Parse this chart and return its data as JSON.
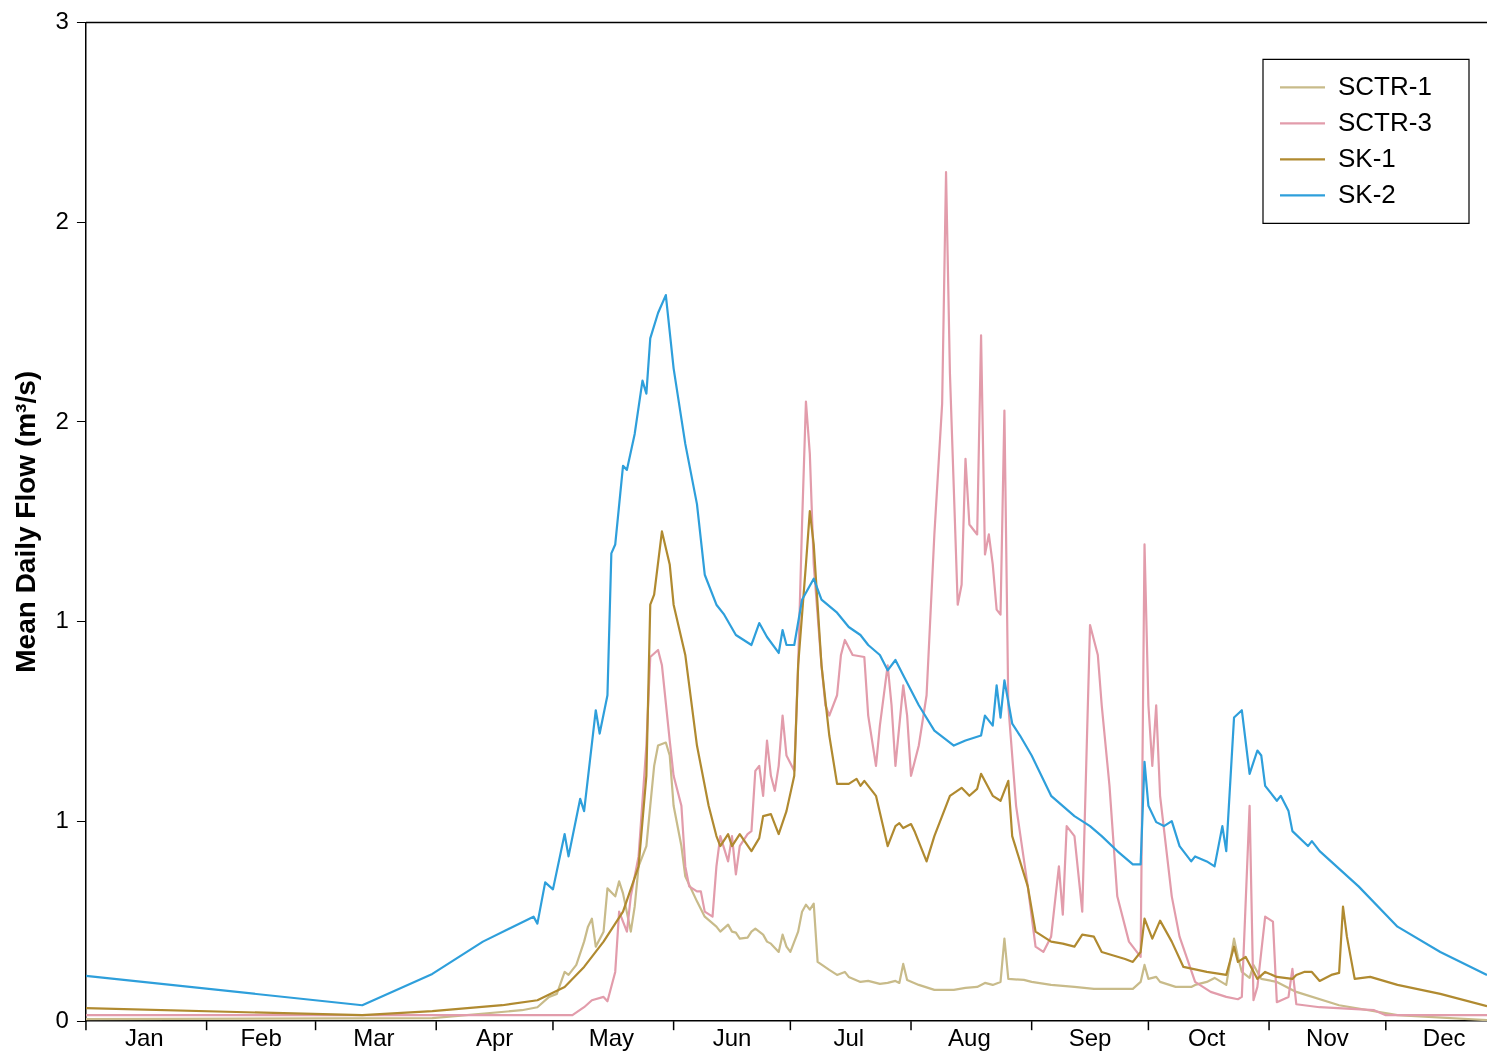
{
  "chart_data": {
    "type": "line",
    "ylabel": "Mean Daily Flow (m³/s)",
    "xlim": [
      "--01-01",
      "--12-27"
    ],
    "ylim": [
      0,
      3
    ],
    "xticks": [
      {
        "value": "--01-01",
        "label": null
      },
      {
        "value": "--01-16",
        "label": "Jan"
      },
      {
        "value": "--02-01",
        "label": null
      },
      {
        "value": "--02-15",
        "label": "Feb"
      },
      {
        "value": "--03-01",
        "label": null
      },
      {
        "value": "--03-16",
        "label": "Mar"
      },
      {
        "value": "--04-01",
        "label": null
      },
      {
        "value": "--04-16",
        "label": "Apr"
      },
      {
        "value": "--05-01",
        "label": null
      },
      {
        "value": "--05-16",
        "label": "May"
      },
      {
        "value": "--06-01",
        "label": null
      },
      {
        "value": "--06-16",
        "label": "Jun"
      },
      {
        "value": "--07-01",
        "label": null
      },
      {
        "value": "--07-16",
        "label": "Jul"
      },
      {
        "value": "--08-01",
        "label": null
      },
      {
        "value": "--08-16",
        "label": "Aug"
      },
      {
        "value": "--09-01",
        "label": null
      },
      {
        "value": "--09-16",
        "label": "Sep"
      },
      {
        "value": "--10-01",
        "label": null
      },
      {
        "value": "--10-16",
        "label": "Oct"
      },
      {
        "value": "--11-01",
        "label": null
      },
      {
        "value": "--11-16",
        "label": "Nov"
      },
      {
        "value": "--12-01",
        "label": null
      },
      {
        "value": "--12-16",
        "label": "Dec"
      }
    ],
    "yticks": [
      0,
      {
        "value": 0.6,
        "label": "1"
      },
      {
        "value": 1.2,
        "label": "1"
      },
      {
        "value": 1.8,
        "label": "2"
      },
      {
        "value": 2.4,
        "label": "2"
      },
      3
    ],
    "grid": false,
    "legend": "top right",
    "marker": "none",
    "line_style": "solid",
    "series": [
      {
        "name": "SCTR-1",
        "color": "#c8bb8a",
        "x": [
          "--01-01",
          "--03-31",
          "--04-23",
          "--04-27",
          "--04-30",
          "--05-02",
          "--05-04",
          "--05-05",
          "--05-07",
          "--05-09",
          "--05-10",
          "--05-11",
          "--05-12",
          "--05-14",
          "--05-15",
          "--05-17",
          "--05-18",
          "--05-19",
          "--05-21",
          "--05-22",
          "--05-23",
          "--05-25",
          "--05-26",
          "--05-27",
          "--05-28",
          "--05-30",
          "--05-31",
          "--06-01",
          "--06-03",
          "--06-04",
          "--06-07",
          "--06-09",
          "--06-12",
          "--06-13",
          "--06-15",
          "--06-16",
          "--06-17",
          "--06-18",
          "--06-20",
          "--06-21",
          "--06-22",
          "--06-24",
          "--06-25",
          "--06-26",
          "--06-28",
          "--06-29",
          "--06-30",
          "--07-01",
          "--07-03",
          "--07-04",
          "--07-05",
          "--07-06",
          "--07-07",
          "--07-08",
          "--07-11",
          "--07-13",
          "--07-15",
          "--07-16",
          "--07-19",
          "--07-21",
          "--07-24",
          "--07-26",
          "--07-28",
          "--07-29",
          "--07-30",
          "--07-31",
          "--08-03",
          "--08-07",
          "--08-12",
          "--08-15",
          "--08-18",
          "--08-20",
          "--08-22",
          "--08-24",
          "--08-25",
          "--08-26",
          "--08-30",
          "--09-01",
          "--09-06",
          "--09-12",
          "--09-17",
          "--09-22",
          "--09-27",
          "--09-29",
          "--09-30",
          "--10-01",
          "--10-03",
          "--10-04",
          "--10-08",
          "--10-12",
          "--10-13",
          "--10-16",
          "--10-18",
          "--10-21",
          "--10-23",
          "--10-24",
          "--10-25",
          "--10-27",
          "--10-28",
          "--10-30",
          "--11-03",
          "--11-08",
          "--11-19",
          "--12-04",
          "--12-27"
        ],
        "values": [
          0.006,
          0.009,
          0.033,
          0.042,
          0.073,
          0.082,
          0.148,
          0.139,
          0.169,
          0.239,
          0.284,
          0.308,
          0.224,
          0.269,
          0.399,
          0.375,
          0.42,
          0.384,
          0.269,
          0.344,
          0.465,
          0.526,
          0.647,
          0.767,
          0.828,
          0.837,
          0.798,
          0.647,
          0.526,
          0.435,
          0.36,
          0.314,
          0.284,
          0.269,
          0.29,
          0.269,
          0.266,
          0.248,
          0.251,
          0.269,
          0.278,
          0.26,
          0.239,
          0.233,
          0.208,
          0.26,
          0.224,
          0.208,
          0.269,
          0.329,
          0.35,
          0.335,
          0.353,
          0.178,
          0.154,
          0.139,
          0.148,
          0.133,
          0.118,
          0.121,
          0.112,
          0.115,
          0.121,
          0.115,
          0.172,
          0.124,
          0.109,
          0.094,
          0.094,
          0.1,
          0.103,
          0.115,
          0.109,
          0.118,
          0.248,
          0.127,
          0.124,
          0.118,
          0.109,
          0.103,
          0.097,
          0.097,
          0.097,
          0.118,
          0.169,
          0.127,
          0.133,
          0.118,
          0.103,
          0.103,
          0.109,
          0.118,
          0.13,
          0.109,
          0.248,
          0.193,
          0.148,
          0.13,
          0.169,
          0.127,
          0.118,
          0.088,
          0.048,
          0.018,
          0.003
        ]
      },
      {
        "name": "SCTR-3",
        "color": "#e29cab",
        "x": [
          "--01-01",
          "--05-06",
          "--05-09",
          "--05-11",
          "--05-14",
          "--05-15",
          "--05-17",
          "--05-18",
          "--05-20",
          "--05-21",
          "--05-23",
          "--05-25",
          "--05-26",
          "--05-28",
          "--05-29",
          "--05-31",
          "--06-01",
          "--06-03",
          "--06-04",
          "--06-05",
          "--06-07",
          "--06-08",
          "--06-09",
          "--06-11",
          "--06-12",
          "--06-13",
          "--06-15",
          "--06-16",
          "--06-17",
          "--06-18",
          "--06-20",
          "--06-21",
          "--06-22",
          "--06-23",
          "--06-24",
          "--06-25",
          "--06-26",
          "--06-27",
          "--06-28",
          "--06-29",
          "--06-30",
          "--07-02",
          "--07-03",
          "--07-04",
          "--07-05",
          "--07-06",
          "--07-07",
          "--07-09",
          "--07-10",
          "--07-11",
          "--07-13",
          "--07-14",
          "--07-15",
          "--07-17",
          "--07-20",
          "--07-21",
          "--07-23",
          "--07-24",
          "--07-26",
          "--07-27",
          "--07-28",
          "--07-30",
          "--07-31",
          "--08-01",
          "--08-03",
          "--08-05",
          "--08-07",
          "--08-09",
          "--08-10",
          "--08-11",
          "--08-13",
          "--08-14",
          "--08-15",
          "--08-16",
          "--08-18",
          "--08-19",
          "--08-20",
          "--08-21",
          "--08-22",
          "--08-23",
          "--08-24",
          "--08-25",
          "--08-26",
          "--08-28",
          "--08-31",
          "--09-02",
          "--09-04",
          "--09-06",
          "--09-08",
          "--09-09",
          "--09-10",
          "--09-12",
          "--09-14",
          "--09-16",
          "--09-18",
          "--09-19",
          "--09-21",
          "--09-23",
          "--09-26",
          "--09-29",
          "--09-30",
          "--10-01",
          "--10-02",
          "--10-03",
          "--10-04",
          "--10-07",
          "--10-09",
          "--10-13",
          "--10-17",
          "--10-21",
          "--10-24",
          "--10-25",
          "--10-27",
          "--10-28",
          "--10-29",
          "--10-31",
          "--11-02",
          "--11-03",
          "--11-06",
          "--11-07",
          "--11-08",
          "--11-14",
          "--11-28",
          "--12-01",
          "--12-27"
        ],
        "values": [
          0.018,
          0.018,
          0.042,
          0.063,
          0.073,
          0.06,
          0.148,
          0.329,
          0.269,
          0.375,
          0.495,
          0.828,
          1.094,
          1.115,
          1.069,
          0.843,
          0.737,
          0.647,
          0.465,
          0.405,
          0.39,
          0.39,
          0.329,
          0.314,
          0.465,
          0.556,
          0.48,
          0.556,
          0.441,
          0.526,
          0.562,
          0.571,
          0.752,
          0.767,
          0.677,
          0.843,
          0.737,
          0.692,
          0.767,
          0.918,
          0.798,
          0.752,
          1.069,
          1.492,
          1.861,
          1.704,
          1.372,
          1.069,
          0.949,
          0.918,
          0.979,
          1.1,
          1.145,
          1.1,
          1.094,
          0.918,
          0.767,
          0.888,
          1.069,
          0.949,
          0.767,
          1.009,
          0.918,
          0.737,
          0.828,
          0.979,
          1.462,
          1.855,
          2.55,
          1.946,
          1.251,
          1.311,
          1.689,
          1.492,
          1.462,
          2.06,
          1.402,
          1.462,
          1.372,
          1.236,
          1.221,
          1.834,
          0.949,
          0.647,
          0.405,
          0.224,
          0.208,
          0.254,
          0.465,
          0.32,
          0.586,
          0.556,
          0.329,
          1.19,
          1.1,
          0.949,
          0.707,
          0.375,
          0.239,
          0.193,
          1.432,
          0.949,
          0.767,
          0.949,
          0.677,
          0.375,
          0.254,
          0.118,
          0.088,
          0.073,
          0.066,
          0.073,
          0.647,
          0.063,
          0.103,
          0.314,
          0.299,
          0.057,
          0.073,
          0.157,
          0.051,
          0.042,
          0.033,
          0.018,
          0.018
        ]
      },
      {
        "name": "SK-1",
        "color": "#b08a30",
        "x": [
          "--01-01",
          "--03-13",
          "--03-31",
          "--04-18",
          "--04-27",
          "--05-04",
          "--05-09",
          "--05-14",
          "--05-19",
          "--05-23",
          "--05-25",
          "--05-26",
          "--05-27",
          "--05-29",
          "--05-31",
          "--06-01",
          "--06-04",
          "--06-07",
          "--06-10",
          "--06-12",
          "--06-13",
          "--06-15",
          "--06-16",
          "--06-18",
          "--06-21",
          "--06-23",
          "--06-24",
          "--06-26",
          "--06-28",
          "--06-30",
          "--07-02",
          "--07-03",
          "--07-05",
          "--07-06",
          "--07-07",
          "--07-09",
          "--07-11",
          "--07-13",
          "--07-16",
          "--07-18",
          "--07-19",
          "--07-20",
          "--07-23",
          "--07-26",
          "--07-28",
          "--07-29",
          "--07-30",
          "--08-01",
          "--08-02",
          "--08-05",
          "--08-07",
          "--08-11",
          "--08-14",
          "--08-16",
          "--08-18",
          "--08-19",
          "--08-22",
          "--08-24",
          "--08-26",
          "--08-27",
          "--08-31",
          "--09-02",
          "--09-06",
          "--09-09",
          "--09-12",
          "--09-14",
          "--09-17",
          "--09-19",
          "--09-25",
          "--09-27",
          "--09-29",
          "--09-30",
          "--10-02",
          "--10-04",
          "--10-07",
          "--10-10",
          "--10-16",
          "--10-21",
          "--10-23",
          "--10-24",
          "--10-26",
          "--10-29",
          "--10-31",
          "--11-03",
          "--11-07",
          "--11-08",
          "--11-10",
          "--11-12",
          "--11-14",
          "--11-17",
          "--11-19",
          "--11-20",
          "--11-21",
          "--11-23",
          "--11-27",
          "--12-04",
          "--12-15",
          "--12-27"
        ],
        "values": [
          0.039,
          0.018,
          0.03,
          0.048,
          0.063,
          0.103,
          0.163,
          0.239,
          0.329,
          0.465,
          0.737,
          1.251,
          1.281,
          1.471,
          1.372,
          1.251,
          1.1,
          0.828,
          0.647,
          0.556,
          0.526,
          0.562,
          0.526,
          0.562,
          0.511,
          0.55,
          0.616,
          0.622,
          0.562,
          0.631,
          0.737,
          1.069,
          1.372,
          1.532,
          1.432,
          1.069,
          0.858,
          0.713,
          0.713,
          0.728,
          0.707,
          0.722,
          0.677,
          0.526,
          0.586,
          0.595,
          0.58,
          0.592,
          0.568,
          0.48,
          0.556,
          0.677,
          0.701,
          0.677,
          0.698,
          0.743,
          0.677,
          0.662,
          0.722,
          0.556,
          0.405,
          0.269,
          0.239,
          0.233,
          0.224,
          0.26,
          0.254,
          0.208,
          0.187,
          0.178,
          0.208,
          0.308,
          0.248,
          0.302,
          0.239,
          0.163,
          0.148,
          0.139,
          0.224,
          0.178,
          0.193,
          0.127,
          0.148,
          0.133,
          0.127,
          0.139,
          0.148,
          0.148,
          0.121,
          0.139,
          0.145,
          0.344,
          0.254,
          0.127,
          0.133,
          0.109,
          0.082,
          0.045
        ]
      },
      {
        "name": "SK-2",
        "color": "#2e9fdb",
        "x": [
          "--01-01",
          "--03-13",
          "--03-31",
          "--04-13",
          "--04-26",
          "--04-27",
          "--04-29",
          "--05-01",
          "--05-04",
          "--05-05",
          "--05-08",
          "--05-09",
          "--05-12",
          "--05-13",
          "--05-15",
          "--05-16",
          "--05-17",
          "--05-19",
          "--05-20",
          "--05-22",
          "--05-24",
          "--05-25",
          "--05-26",
          "--05-28",
          "--05-30",
          "--06-01",
          "--06-04",
          "--06-07",
          "--06-09",
          "--06-12",
          "--06-14",
          "--06-17",
          "--06-21",
          "--06-23",
          "--06-25",
          "--06-28",
          "--06-29",
          "--06-30",
          "--07-02",
          "--07-04",
          "--07-07",
          "--07-09",
          "--07-13",
          "--07-16",
          "--07-19",
          "--07-21",
          "--07-24",
          "--07-26",
          "--07-28",
          "--07-30",
          "--08-03",
          "--08-07",
          "--08-12",
          "--08-15",
          "--08-19",
          "--08-20",
          "--08-22",
          "--08-23",
          "--08-24",
          "--08-25",
          "--08-27",
          "--08-29",
          "--09-01",
          "--09-06",
          "--09-12",
          "--09-16",
          "--09-19",
          "--09-23",
          "--09-27",
          "--09-29",
          "--09-30",
          "--10-01",
          "--10-03",
          "--10-05",
          "--10-07",
          "--10-09",
          "--10-12",
          "--10-13",
          "--10-16",
          "--10-18",
          "--10-20",
          "--10-21",
          "--10-23",
          "--10-25",
          "--10-27",
          "--10-29",
          "--10-30",
          "--10-31",
          "--11-03",
          "--11-04",
          "--11-06",
          "--11-07",
          "--11-11",
          "--11-12",
          "--11-14",
          "--11-24",
          "--12-04",
          "--12-15",
          "--12-27"
        ],
        "values": [
          0.136,
          0.048,
          0.142,
          0.239,
          0.314,
          0.293,
          0.417,
          0.396,
          0.562,
          0.495,
          0.668,
          0.631,
          0.934,
          0.864,
          0.979,
          1.405,
          1.432,
          1.668,
          1.656,
          1.764,
          1.924,
          1.885,
          2.051,
          2.127,
          2.181,
          1.961,
          1.734,
          1.553,
          1.341,
          1.251,
          1.221,
          1.16,
          1.13,
          1.196,
          1.154,
          1.106,
          1.175,
          1.13,
          1.13,
          1.266,
          1.329,
          1.266,
          1.227,
          1.184,
          1.16,
          1.13,
          1.1,
          1.054,
          1.085,
          1.039,
          0.949,
          0.873,
          0.828,
          0.843,
          0.858,
          0.918,
          0.888,
          1.009,
          0.912,
          1.024,
          0.894,
          0.858,
          0.798,
          0.677,
          0.616,
          0.586,
          0.556,
          0.511,
          0.471,
          0.471,
          0.779,
          0.647,
          0.598,
          0.586,
          0.601,
          0.526,
          0.48,
          0.495,
          0.48,
          0.465,
          0.586,
          0.511,
          0.912,
          0.934,
          0.743,
          0.813,
          0.798,
          0.707,
          0.662,
          0.677,
          0.631,
          0.571,
          0.526,
          0.541,
          0.511,
          0.405,
          0.284,
          0.208,
          0.139
        ]
      }
    ]
  }
}
